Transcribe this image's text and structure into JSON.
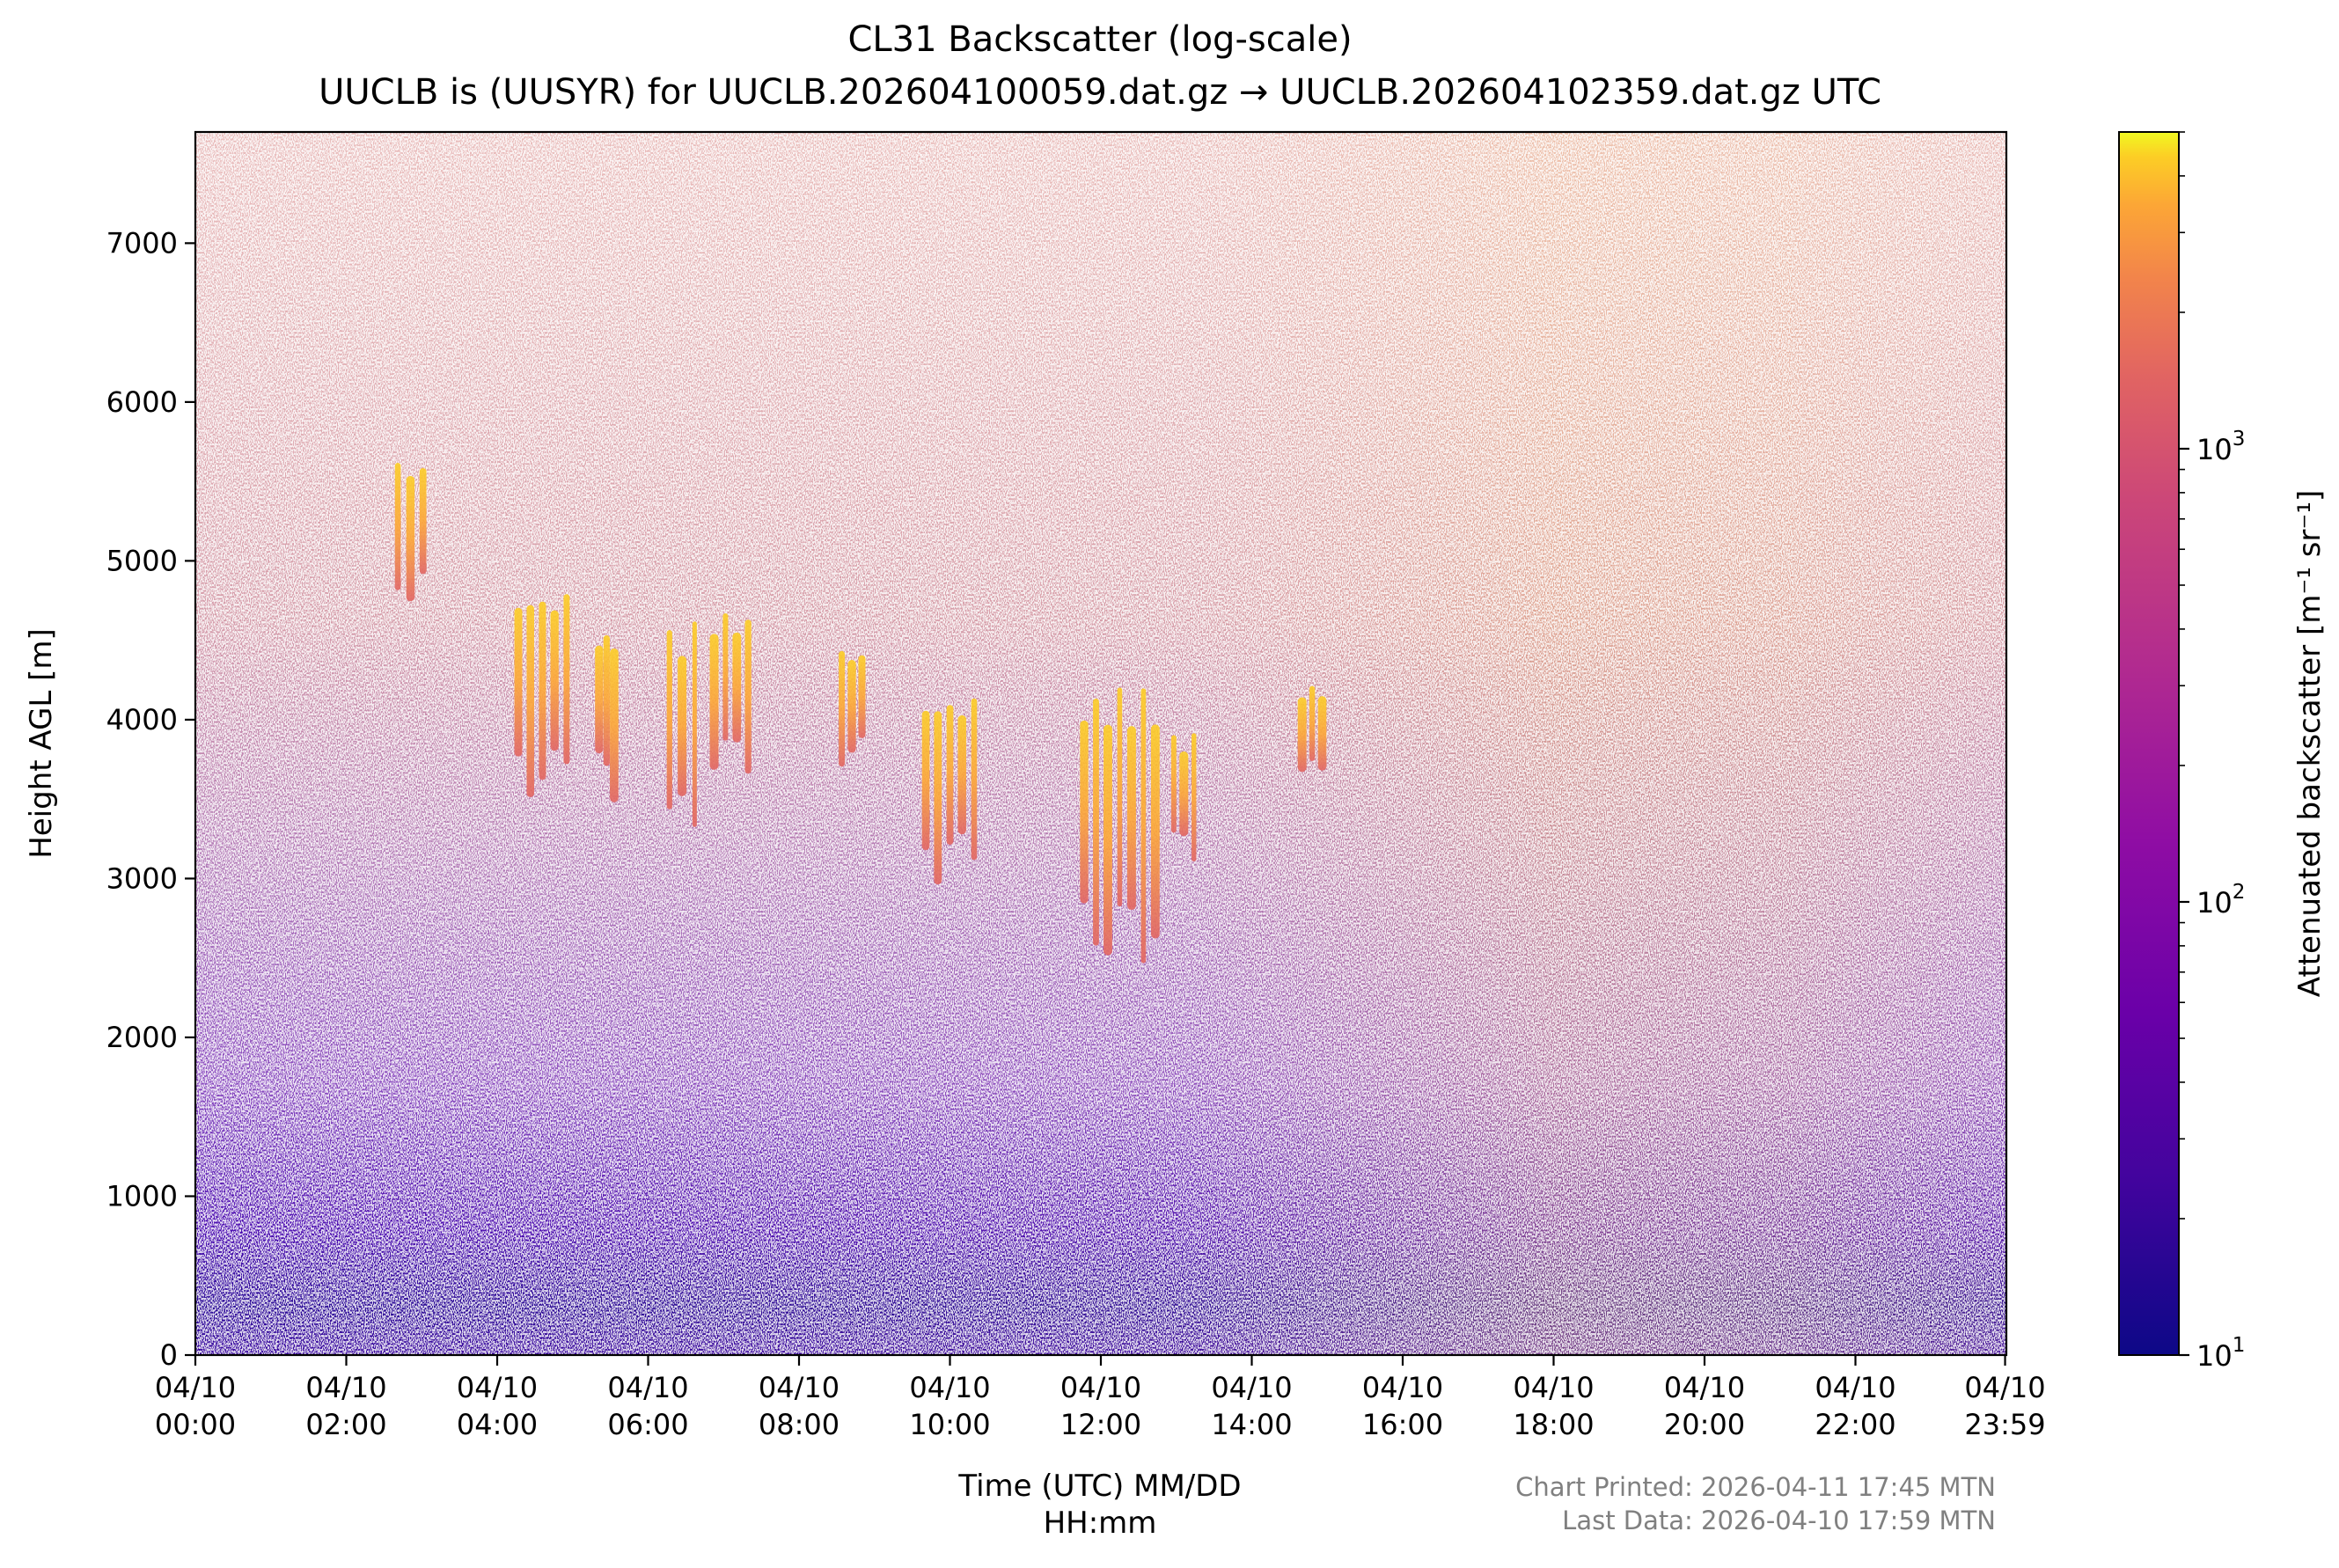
{
  "chart_data": {
    "type": "heatmap",
    "title": "CL31 Backscatter (log-scale)",
    "subtitle": "UUCLB is (UUSYR) for UUCLB.202604100059.dat.gz → UUCLB.202604102359.dat.gz UTC",
    "xlabel_line1": "Time (UTC) MM/DD",
    "xlabel_line2": "HH:mm",
    "ylabel": "Height AGL [m]",
    "colorbar_label": "Attenuated backscatter [m⁻¹ sr⁻¹]",
    "colormap": "plasma",
    "colorscale": "log",
    "x_range_hours": [
      0,
      24
    ],
    "ylim": [
      0,
      7700
    ],
    "clim": [
      10,
      5000
    ],
    "x_ticks": [
      {
        "hour": 0,
        "date": "04/10",
        "time": "00:00"
      },
      {
        "hour": 2,
        "date": "04/10",
        "time": "02:00"
      },
      {
        "hour": 4,
        "date": "04/10",
        "time": "04:00"
      },
      {
        "hour": 6,
        "date": "04/10",
        "time": "06:00"
      },
      {
        "hour": 8,
        "date": "04/10",
        "time": "08:00"
      },
      {
        "hour": 10,
        "date": "04/10",
        "time": "10:00"
      },
      {
        "hour": 12,
        "date": "04/10",
        "time": "12:00"
      },
      {
        "hour": 14,
        "date": "04/10",
        "time": "14:00"
      },
      {
        "hour": 16,
        "date": "04/10",
        "time": "16:00"
      },
      {
        "hour": 18,
        "date": "04/10",
        "time": "18:00"
      },
      {
        "hour": 20,
        "date": "04/10",
        "time": "20:00"
      },
      {
        "hour": 22,
        "date": "04/10",
        "time": "22:00"
      },
      {
        "hour": 23.983,
        "date": "04/10",
        "time": "23:59"
      }
    ],
    "y_ticks": [
      {
        "value": 0,
        "label": "0"
      },
      {
        "value": 1000,
        "label": "1000"
      },
      {
        "value": 2000,
        "label": "2000"
      },
      {
        "value": 3000,
        "label": "3000"
      },
      {
        "value": 4000,
        "label": "4000"
      },
      {
        "value": 5000,
        "label": "5000"
      },
      {
        "value": 6000,
        "label": "6000"
      },
      {
        "value": 7000,
        "label": "7000"
      }
    ],
    "colorbar_ticks": [
      {
        "value": 10,
        "base": "10",
        "exp": "1"
      },
      {
        "value": 100,
        "base": "10",
        "exp": "2"
      },
      {
        "value": 1000,
        "base": "10",
        "exp": "3"
      }
    ],
    "cloud_features": [
      {
        "start_hour": 2.6,
        "end_hour": 3.1,
        "bottom_m": 4600,
        "top_m": 5750
      },
      {
        "start_hour": 4.2,
        "end_hour": 5.0,
        "bottom_m": 3300,
        "top_m": 5000
      },
      {
        "start_hour": 5.3,
        "end_hour": 5.6,
        "bottom_m": 3400,
        "top_m": 4700
      },
      {
        "start_hour": 6.2,
        "end_hour": 6.7,
        "bottom_m": 3000,
        "top_m": 4750
      },
      {
        "start_hour": 6.8,
        "end_hour": 7.4,
        "bottom_m": 3500,
        "top_m": 4800
      },
      {
        "start_hour": 8.5,
        "end_hour": 8.9,
        "bottom_m": 3600,
        "top_m": 4550
      },
      {
        "start_hour": 9.6,
        "end_hour": 10.4,
        "bottom_m": 2850,
        "top_m": 4300
      },
      {
        "start_hour": 11.7,
        "end_hour": 12.8,
        "bottom_m": 2200,
        "top_m": 4400
      },
      {
        "start_hour": 12.9,
        "end_hour": 13.3,
        "bottom_m": 3000,
        "top_m": 4000
      },
      {
        "start_hour": 14.6,
        "end_hour": 15.0,
        "bottom_m": 3500,
        "top_m": 4300
      }
    ]
  },
  "footer": {
    "printed": "Chart Printed: 2026-04-11 17:45 MTN",
    "last_data": "Last Data: 2026-04-10 17:59 MTN"
  }
}
